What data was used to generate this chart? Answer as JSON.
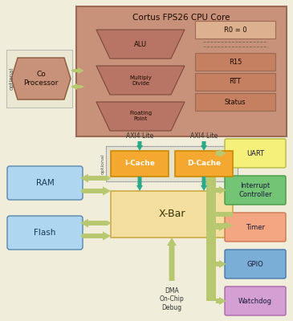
{
  "bg_color": "#f0eedb",
  "title": "Cortus FPS26 CPU Core",
  "cpu_color": "#c8917a",
  "trap_color": "#b87565",
  "reg_color_top": "#d4a882",
  "reg_color": "#c48060",
  "cop_color": "#c8917a",
  "cop_opt_bg": "#e8e5d0",
  "cache_color": "#f5a830",
  "cache_border": "#cc8800",
  "cache_opt_bg": "#ddddc8",
  "xbar_color": "#f5dfa0",
  "xbar_border": "#ccaa44",
  "ram_color": "#aed6f1",
  "flash_color": "#aed6f1",
  "mem_border": "#5588aa",
  "arrow_color": "#b8c870",
  "teal_color": "#2aaa8a",
  "right_boxes": [
    {
      "label": "UART",
      "color": "#f5f07a",
      "border": "#b8b840"
    },
    {
      "label": "Interrupt\nController",
      "color": "#74c476",
      "border": "#449944"
    },
    {
      "label": "Timer",
      "color": "#f4a582",
      "border": "#cc7755"
    },
    {
      "label": "GPIO",
      "color": "#7baed6",
      "border": "#4477aa"
    },
    {
      "label": "Watchdog",
      "color": "#d4a0d4",
      "border": "#aa66aa"
    }
  ],
  "dma_label": "DMA\nOn-Chip\nDebug",
  "axi_label": "AXI4 Lite",
  "optional_label": "optional"
}
